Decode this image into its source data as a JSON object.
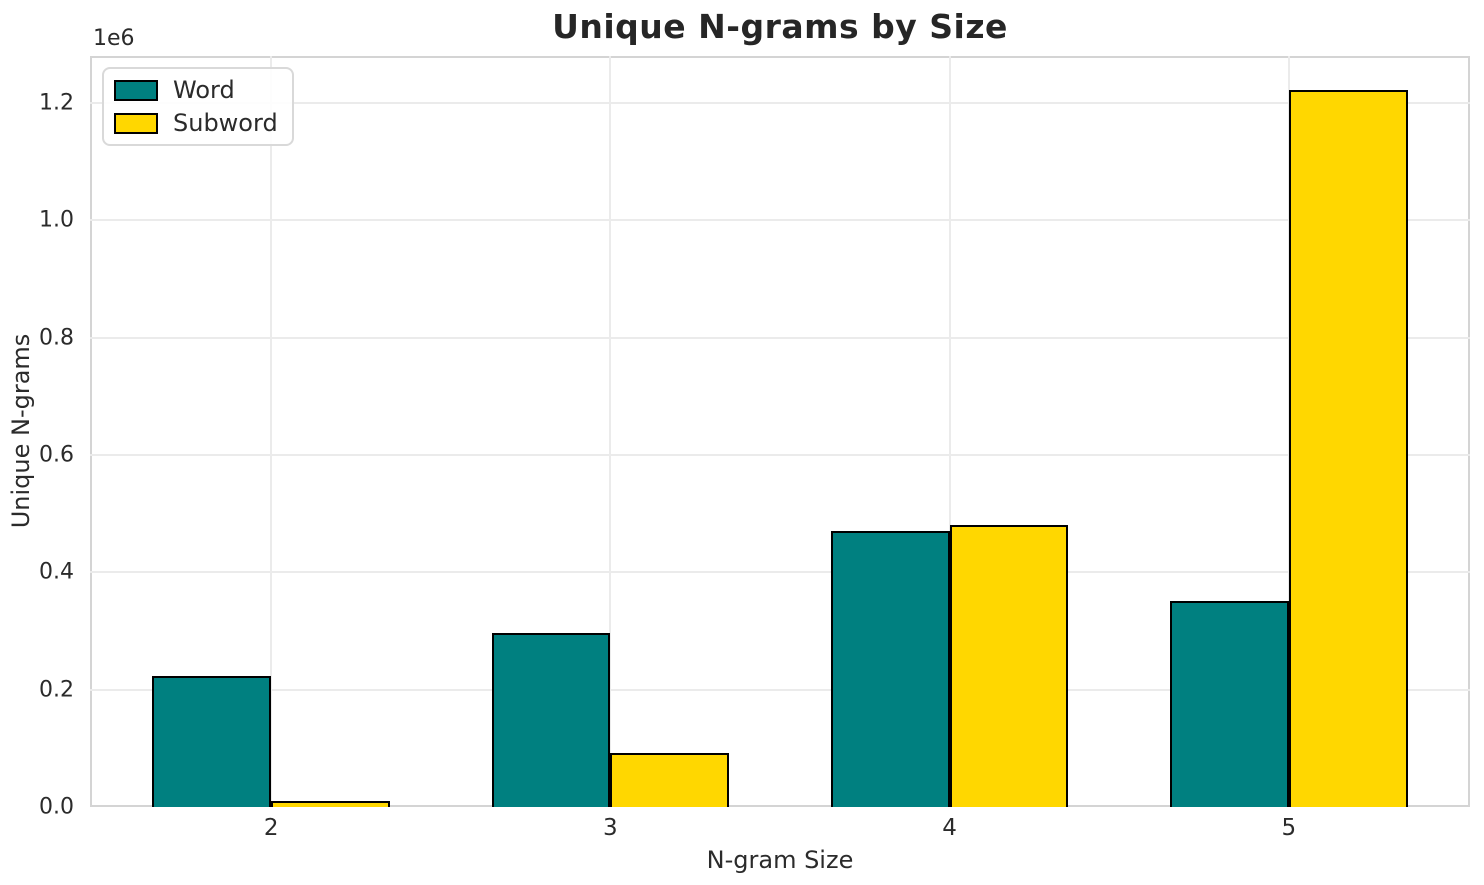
{
  "axes": {
    "offset_label": "1e6"
  },
  "chart_data": {
    "type": "bar",
    "title": "Unique N-grams by Size",
    "xlabel": "N-gram Size",
    "ylabel": "Unique N-grams",
    "y_offset_label": "1e6",
    "categories": [
      "2",
      "3",
      "4",
      "5"
    ],
    "series": [
      {
        "name": "Word",
        "color": "#008080",
        "values": [
          223000,
          296000,
          470000,
          351000
        ]
      },
      {
        "name": "Subword",
        "color": "#ffd700",
        "values": [
          11000,
          92000,
          480000,
          1222000
        ]
      }
    ],
    "ylim": [
      0,
      1280000
    ],
    "xlim": [
      1.466,
      5.534
    ],
    "bar_width_units": 0.35,
    "yticks": [
      0,
      200000,
      400000,
      600000,
      800000,
      1000000,
      1200000
    ],
    "ytick_labels": [
      "0.0",
      "0.2",
      "0.4",
      "0.6",
      "0.8",
      "1.0",
      "1.2"
    ],
    "xtick_labels": [
      "2",
      "3",
      "4",
      "5"
    ],
    "grid": true,
    "legend_position": "upper left",
    "bar_edge_color": "#000000",
    "colors": {
      "grid": "#ebebeb",
      "spine": "#d4d4d4",
      "text": "#2b2b2b",
      "title": "#262626",
      "background": "#ffffff"
    }
  }
}
